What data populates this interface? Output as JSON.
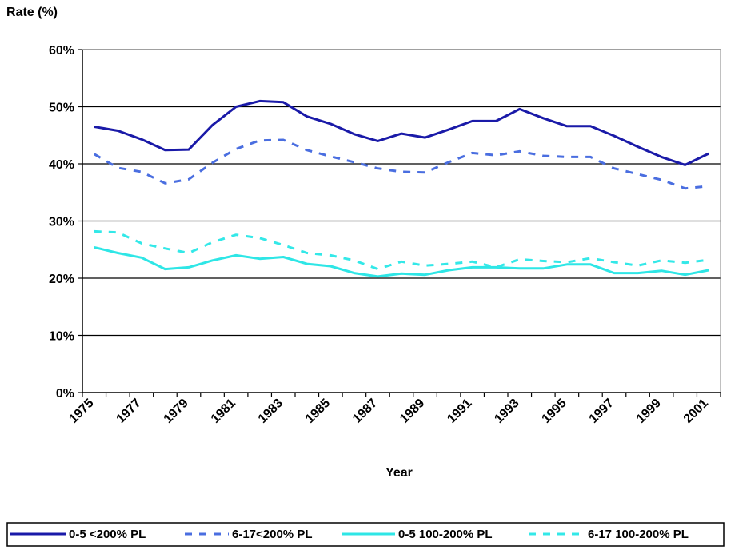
{
  "chart_data": {
    "type": "line",
    "title": "",
    "ylabel": "Rate (%)",
    "xlabel": "Year",
    "ylim": [
      0,
      60
    ],
    "yticks": [
      0,
      10,
      20,
      30,
      40,
      50,
      60
    ],
    "ytick_labels": [
      "0%",
      "10%",
      "20%",
      "30%",
      "40%",
      "50%",
      "60%"
    ],
    "x": [
      1975,
      1976,
      1977,
      1978,
      1979,
      1980,
      1981,
      1982,
      1983,
      1984,
      1985,
      1986,
      1987,
      1988,
      1989,
      1990,
      1991,
      1992,
      1993,
      1994,
      1995,
      1996,
      1997,
      1998,
      1999,
      2000,
      2001
    ],
    "xtick_labels": [
      "1975",
      "1977",
      "1979",
      "1981",
      "1983",
      "1985",
      "1987",
      "1989",
      "1991",
      "1993",
      "1995",
      "1997",
      "1999",
      "2001"
    ],
    "grid": true,
    "legend_position": "bottom",
    "series": [
      {
        "name": "0-5 <200% PL",
        "color": "#1a1aa8",
        "dash": "solid",
        "values": [
          46.5,
          45.8,
          44.3,
          42.4,
          42.5,
          46.8,
          50.0,
          51.0,
          50.8,
          48.3,
          47.0,
          45.2,
          44.0,
          45.3,
          44.6,
          46.0,
          47.5,
          47.5,
          49.6,
          48.0,
          46.6,
          46.6,
          44.9,
          43.0,
          41.2,
          39.8,
          41.8
        ]
      },
      {
        "name": "6-17<200% PL",
        "color": "#4a6ee0",
        "dash": "dashed",
        "values": [
          41.7,
          39.3,
          38.6,
          36.6,
          37.3,
          40.2,
          42.6,
          44.1,
          44.2,
          42.4,
          41.3,
          40.3,
          39.2,
          38.6,
          38.5,
          40.3,
          41.9,
          41.5,
          42.2,
          41.4,
          41.2,
          41.2,
          39.2,
          38.2,
          37.2,
          35.7,
          36.1
        ]
      },
      {
        "name": "0-5 100-200% PL",
        "color": "#2ee6e6",
        "dash": "solid",
        "values": [
          25.4,
          24.4,
          23.6,
          21.6,
          21.9,
          23.1,
          24.0,
          23.4,
          23.7,
          22.5,
          22.1,
          20.9,
          20.3,
          20.8,
          20.6,
          21.4,
          21.9,
          21.9,
          21.7,
          21.7,
          22.4,
          22.4,
          20.9,
          20.9,
          21.3,
          20.6,
          21.4
        ]
      },
      {
        "name": "6-17 100-200% PL",
        "color": "#33e8e8",
        "dash": "dashed",
        "values": [
          28.2,
          28.0,
          26.1,
          25.2,
          24.4,
          26.3,
          27.6,
          27.0,
          25.8,
          24.4,
          24.0,
          23.1,
          21.6,
          22.9,
          22.2,
          22.5,
          22.9,
          21.9,
          23.3,
          23.0,
          22.8,
          23.5,
          22.8,
          22.2,
          23.1,
          22.7,
          23.2
        ]
      }
    ]
  }
}
